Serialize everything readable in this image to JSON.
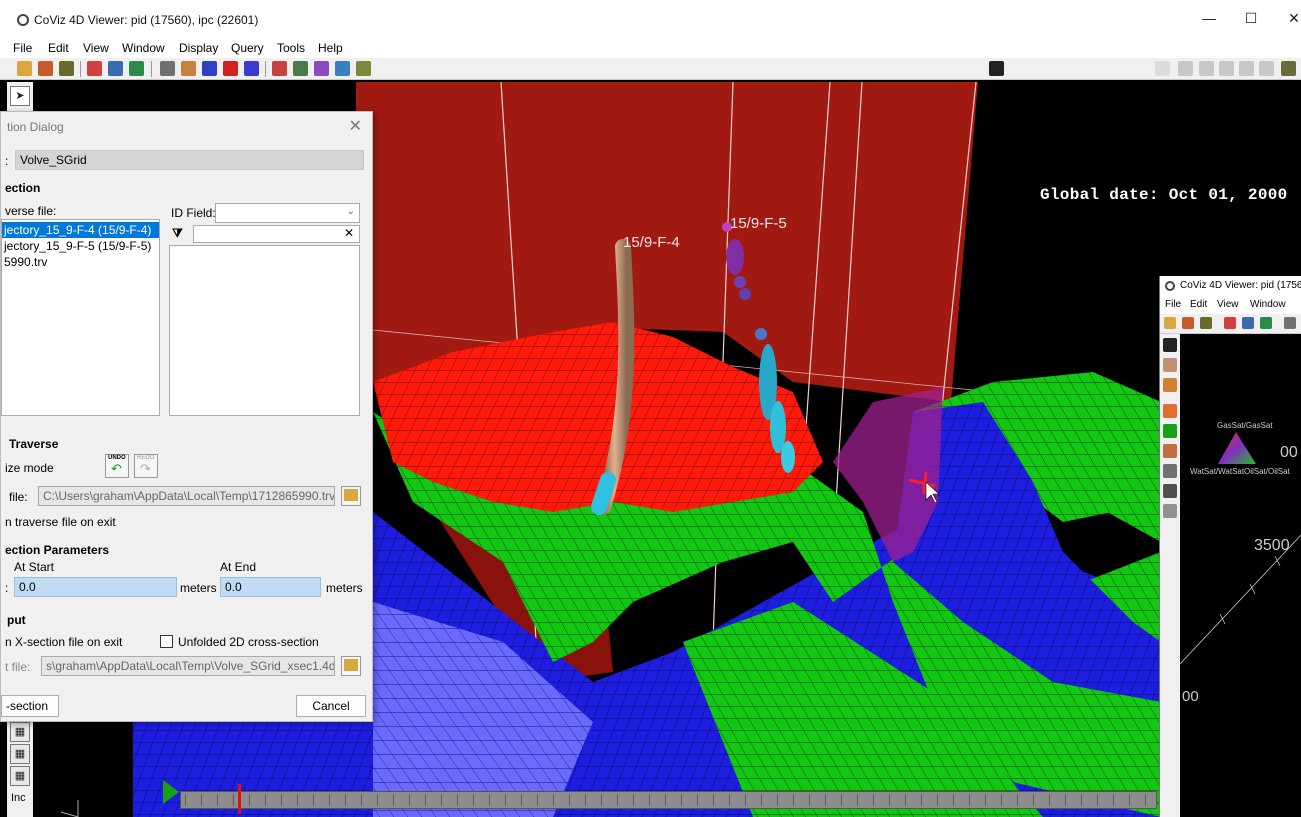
{
  "window": {
    "title": "CoViz 4D Viewer: pid (17560), ipc (22601)",
    "minimize": "—",
    "maximize": "☐",
    "close": "✕"
  },
  "menu": [
    "File",
    "Edit",
    "View",
    "Window",
    "Display",
    "Query",
    "Tools",
    "Help"
  ],
  "viewport": {
    "global_date": "Global date: Oct 01, 2000",
    "wells": [
      "15/9-F-4",
      "15/9-F-5"
    ],
    "colors": {
      "section_plane": "#a01a12",
      "top_surface": "#ff1a0a",
      "green_layer": "#12c812",
      "blue_layer": "#1e1ee0"
    }
  },
  "dialog": {
    "title": "tion Dialog",
    "close": "✕",
    "grid_label": ":",
    "grid_value": "Volve_SGrid",
    "section_heading": "ection",
    "traverse_file_label": "verse file:",
    "traverse_files": [
      "jectory_15_9-F-4 (15/9-F-4)",
      "jectory_15_9-F-5 (15/9-F-5)",
      "5990.trv"
    ],
    "id_field_label": "ID Field:",
    "id_field_value": "",
    "filter_value": "",
    "filter_clear": "✕",
    "traverse_heading": "Traverse",
    "size_mode_label": "ize mode",
    "undo_label": "UNDO",
    "redo_label": "REDO",
    "file_label": "file:",
    "file_value": "C:\\Users\\graham\\AppData\\Local\\Temp\\1712865990.trv",
    "save_traverse_label": "n traverse file on exit",
    "params_heading": "ection Parameters",
    "at_start_label": "At Start",
    "at_end_label": "At End",
    "start_colon": ":",
    "start_value": "0.0",
    "end_value": "0.0",
    "units": "meters",
    "output_heading": "put",
    "save_xsection_label": "n X-section file on exit",
    "unfolded_label": "Unfolded 2D cross-section",
    "out_file_label": "t file:",
    "out_file_value": "s\\graham\\AppData\\Local\\Temp\\Volve_SGrid_xsec1.4dv",
    "create_button": "-section",
    "cancel_button": "Cancel"
  },
  "left_tools": {
    "bottom_label": "Inc"
  },
  "second_window": {
    "title": "CoViz 4D Viewer: pid (1756",
    "menu": [
      "File",
      "Edit",
      "View",
      "Window"
    ],
    "ternary_top": "GasSat/GasSat",
    "ternary_left": "WatSat/WatSat",
    "ternary_right": "OilSat/OilSat",
    "readout_1": "00",
    "readout_2": "3500",
    "readout_3": "00"
  }
}
